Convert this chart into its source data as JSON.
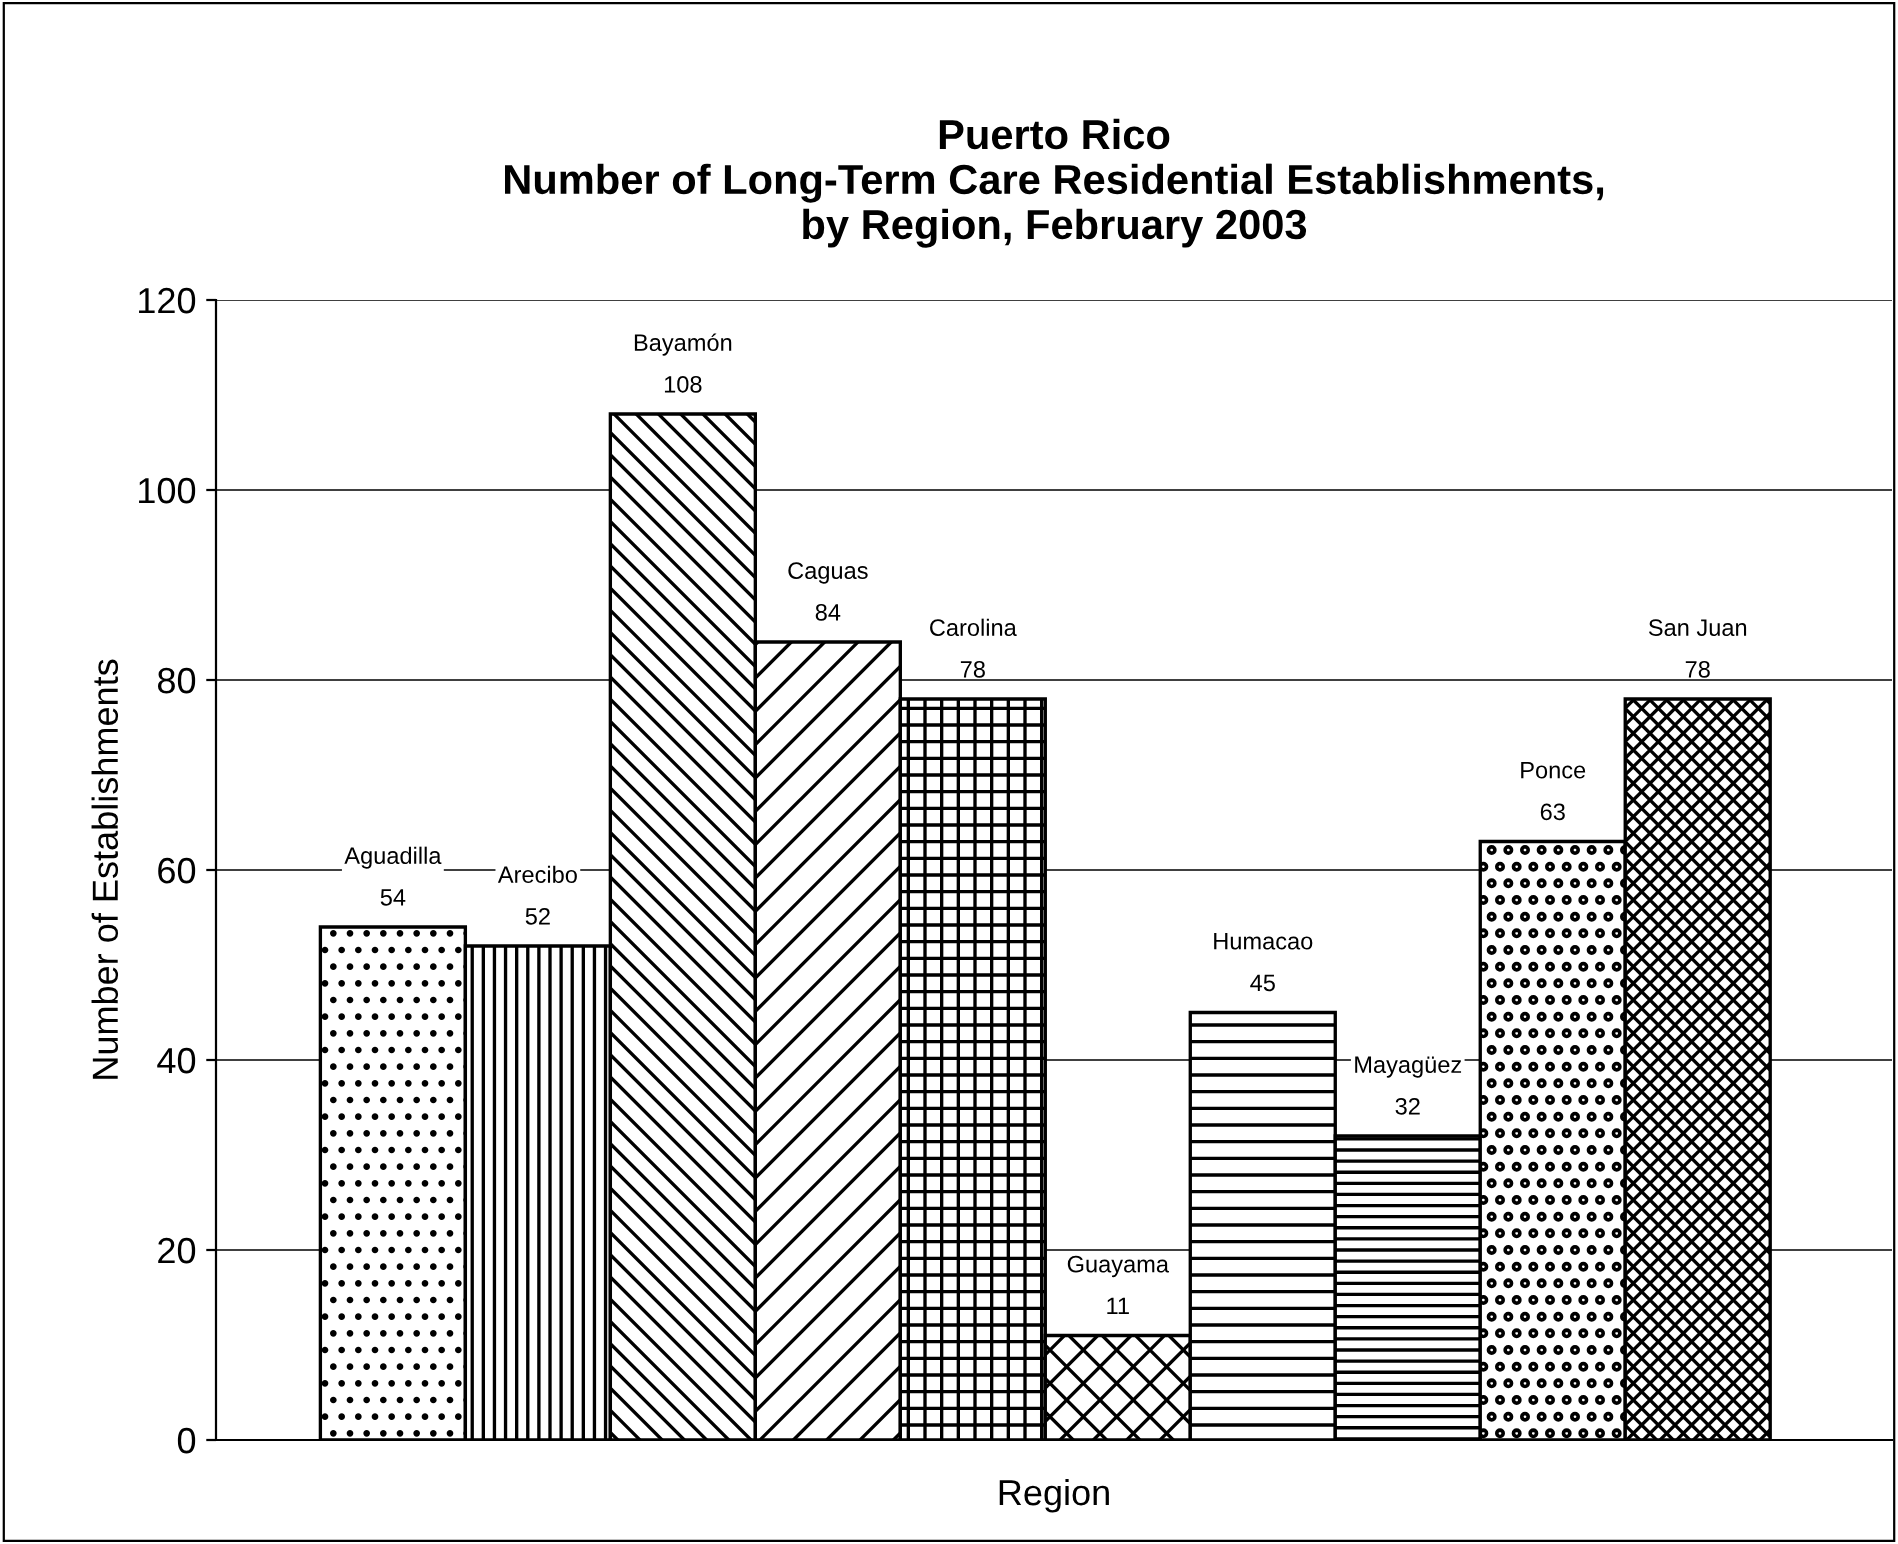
{
  "chart_data": {
    "type": "bar",
    "title": "Puerto Rico\nNumber of Long-Term Care Residential Establishments,\nby Region, February 2003",
    "xlabel": "Region",
    "ylabel": "Number of Establishments",
    "categories": [
      "Aguadilla",
      "Arecibo",
      "Bayamón",
      "Caguas",
      "Carolina",
      "Guayama",
      "Humacao",
      "Mayagüez",
      "Ponce",
      "San Juan"
    ],
    "values": [
      54,
      52,
      108,
      84,
      78,
      11,
      45,
      32,
      63,
      78
    ],
    "ylim": [
      0,
      120
    ],
    "yticks": [
      0,
      20,
      40,
      60,
      80,
      100,
      120
    ],
    "grid": "y",
    "data_labels": true
  }
}
